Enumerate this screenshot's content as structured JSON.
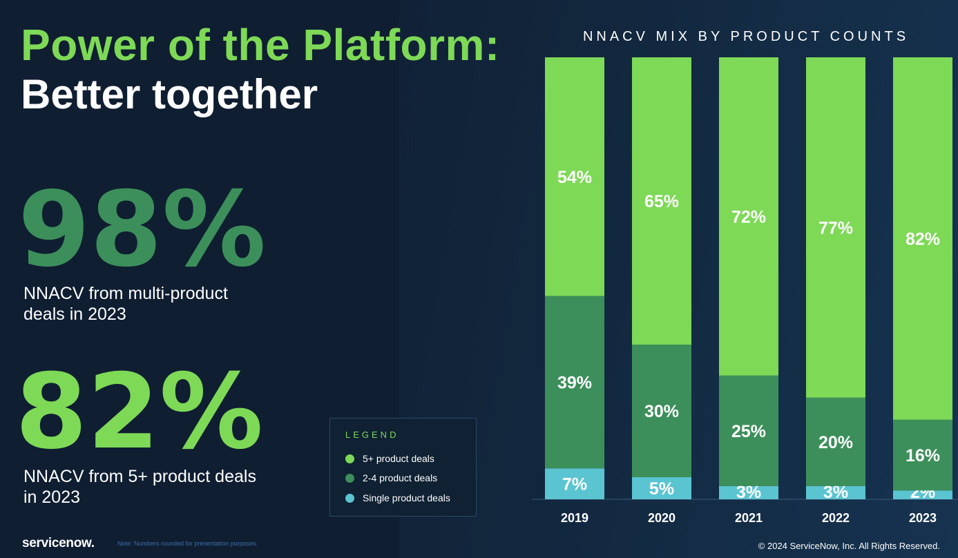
{
  "title": {
    "line1": "Power of the Platform:",
    "line2": "Better together"
  },
  "stats": [
    {
      "value": "98%",
      "description": "NNACV from multi-product deals in 2023",
      "color": "#3c8f5a"
    },
    {
      "value": "82%",
      "description": "NNACV from 5+ product deals in 2023",
      "color": "#7ed957"
    }
  ],
  "legend": {
    "title": "LEGEND",
    "items": [
      {
        "label": "5+ product deals",
        "color": "#7ed957"
      },
      {
        "label": "2-4 product deals",
        "color": "#3c8f5a"
      },
      {
        "label": "Single product deals",
        "color": "#5bc4d1"
      }
    ]
  },
  "footer": {
    "logo": "servicenow.",
    "note": "Note: Numbers rounded for presentation purposes.",
    "copyright": "© 2024 ServiceNow, Inc. All Rights Reserved."
  },
  "chart_data": {
    "type": "bar",
    "stacked": true,
    "title": "NNACV MIX BY PRODUCT COUNTS",
    "categories": [
      "2019",
      "2020",
      "2021",
      "2022",
      "2023"
    ],
    "ylim": [
      0,
      100
    ],
    "series": [
      {
        "name": "Single product deals",
        "values": [
          7,
          5,
          3,
          3,
          2
        ],
        "labels": [
          "7%",
          "5%",
          "3%",
          "3%",
          "2%"
        ],
        "color": "#5bc4d1"
      },
      {
        "name": "2-4 product deals",
        "values": [
          39,
          30,
          25,
          20,
          16
        ],
        "labels": [
          "39%",
          "30%",
          "25%",
          "20%",
          "16%"
        ],
        "color": "#3c8f5a"
      },
      {
        "name": "5+ product deals",
        "values": [
          54,
          65,
          72,
          77,
          82
        ],
        "labels": [
          "54%",
          "65%",
          "72%",
          "77%",
          "82%"
        ],
        "color": "#7ed957"
      }
    ]
  }
}
